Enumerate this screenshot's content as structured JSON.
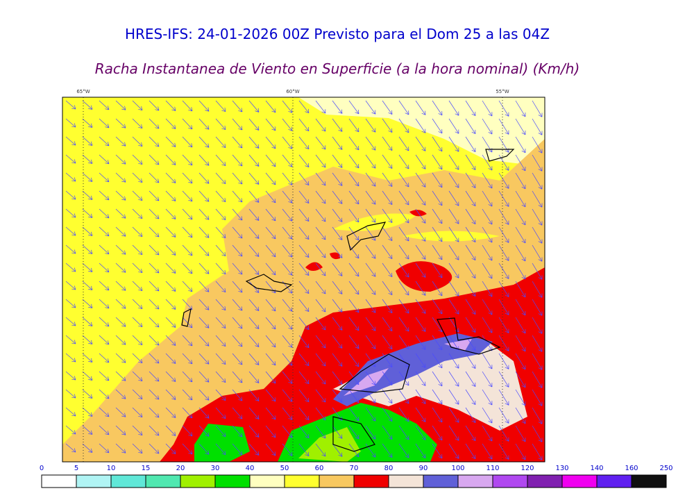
{
  "header": {
    "title": "HRES-IFS: 24-01-2026 00Z Previsto para el Dom 25 a las 04Z",
    "subtitle": "Racha Instantanea de Viento en Superficie (a la hora nominal) (Km/h)"
  },
  "map": {
    "lon_labels": [
      "65°W",
      "60°W",
      "55°W"
    ]
  },
  "legend": {
    "levels": [
      0,
      5,
      10,
      15,
      20,
      30,
      40,
      50,
      60,
      70,
      80,
      90,
      100,
      110,
      120,
      130,
      140,
      160,
      250
    ],
    "colors": [
      "#ffffff",
      "#b0f4f4",
      "#60e8d8",
      "#50e8b0",
      "#a0f000",
      "#00e000",
      "#ffffc0",
      "#ffff30",
      "#f8c860",
      "#f00000",
      "#f4e4d8",
      "#6060d8",
      "#d8a8f0",
      "#b048f0",
      "#8020b0",
      "#f000f0",
      "#6020f0",
      "#101010"
    ]
  }
}
